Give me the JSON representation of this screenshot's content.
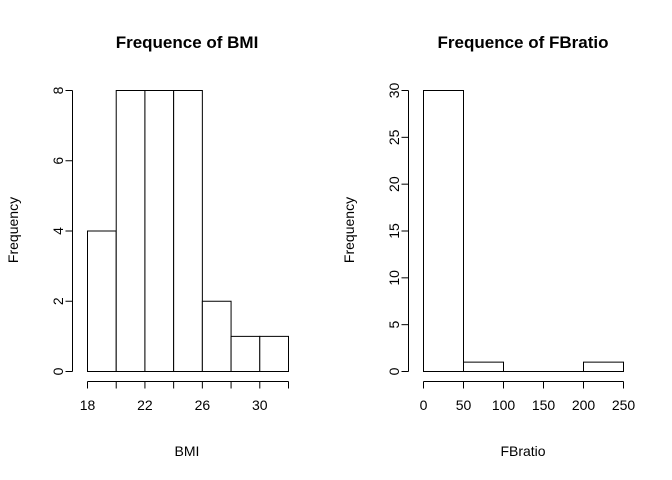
{
  "chart_data": [
    {
      "type": "bar",
      "title": "Frequence of BMI",
      "xlabel": "BMI",
      "ylabel": "Frequency",
      "bins": [
        [
          18,
          20
        ],
        [
          20,
          22
        ],
        [
          22,
          24
        ],
        [
          24,
          26
        ],
        [
          26,
          28
        ],
        [
          28,
          30
        ],
        [
          30,
          32
        ]
      ],
      "values": [
        4,
        8,
        8,
        8,
        2,
        1,
        1
      ],
      "xlim": [
        18,
        32
      ],
      "ylim": [
        0,
        8
      ],
      "xticks": [
        18,
        20,
        22,
        24,
        26,
        28,
        30,
        32
      ],
      "xtick_labels": [
        "18",
        "",
        "22",
        "",
        "26",
        "",
        "30",
        ""
      ],
      "yticks": [
        0,
        2,
        4,
        6,
        8
      ],
      "ytick_labels": [
        "0",
        "2",
        "4",
        "6",
        "8"
      ]
    },
    {
      "type": "bar",
      "title": "Frequence of FBratio",
      "xlabel": "FBratio",
      "ylabel": "Frequency",
      "bins": [
        [
          0,
          50
        ],
        [
          50,
          100
        ],
        [
          100,
          150
        ],
        [
          150,
          200
        ],
        [
          200,
          250
        ]
      ],
      "values": [
        30,
        1,
        0,
        0,
        1
      ],
      "xlim": [
        0,
        250
      ],
      "ylim": [
        0,
        30
      ],
      "xticks": [
        0,
        50,
        100,
        150,
        200,
        250
      ],
      "xtick_labels": [
        "0",
        "50",
        "100",
        "150",
        "200",
        "250"
      ],
      "yticks": [
        0,
        5,
        10,
        15,
        20,
        25,
        30
      ],
      "ytick_labels": [
        "0",
        "5",
        "10",
        "15",
        "20",
        "25",
        "30"
      ]
    }
  ]
}
